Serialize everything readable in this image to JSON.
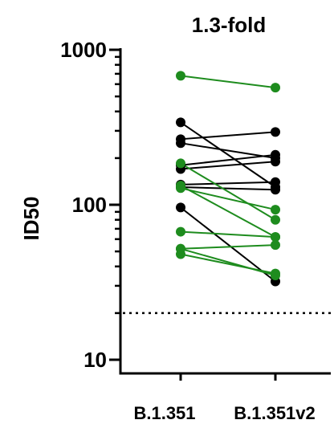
{
  "chart_data": {
    "type": "line",
    "title": "1.3-fold",
    "xlabel": "",
    "ylabel": "ID50",
    "yscale": "log",
    "ylim": [
      10,
      1000
    ],
    "grid": false,
    "categories": [
      "B.1.351",
      "B.1.351v2"
    ],
    "y_ticks": [
      {
        "value": 10,
        "label": "10"
      },
      {
        "value": 100,
        "label": "100"
      },
      {
        "value": 1000,
        "label": "1000"
      }
    ],
    "threshold": {
      "value": 20,
      "style": "dotted"
    },
    "colors": {
      "black_group": "#000000",
      "green_group": "#1e8c1e"
    },
    "series": [
      {
        "group": "green_group",
        "values": [
          680,
          570
        ]
      },
      {
        "group": "black_group",
        "values": [
          340,
          130
        ]
      },
      {
        "group": "black_group",
        "values": [
          265,
          295
        ]
      },
      {
        "group": "black_group",
        "values": [
          250,
          200
        ]
      },
      {
        "group": "green_group",
        "values": [
          185,
          80
        ]
      },
      {
        "group": "black_group",
        "values": [
          180,
          210
        ]
      },
      {
        "group": "black_group",
        "values": [
          170,
          190
        ]
      },
      {
        "group": "black_group",
        "values": [
          135,
          140
        ]
      },
      {
        "group": "green_group",
        "values": [
          133,
          62
        ]
      },
      {
        "group": "black_group",
        "values": [
          130,
          125
        ]
      },
      {
        "group": "green_group",
        "values": [
          128,
          93
        ]
      },
      {
        "group": "black_group",
        "values": [
          96,
          32
        ]
      },
      {
        "group": "green_group",
        "values": [
          67,
          62
        ]
      },
      {
        "group": "green_group",
        "values": [
          52,
          55
        ]
      },
      {
        "group": "green_group",
        "values": [
          48,
          36
        ]
      },
      {
        "group": "green_group",
        "values": [
          52,
          35
        ]
      }
    ]
  }
}
